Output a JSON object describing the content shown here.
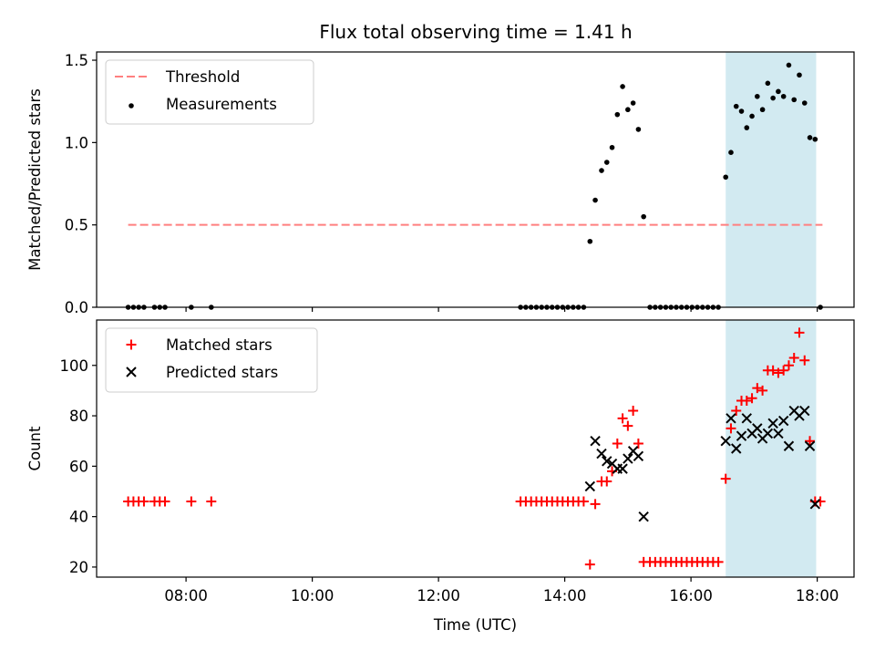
{
  "chart_data": [
    {
      "type": "scatter",
      "title": "Flux total observing time = 1.41 h",
      "xlabel": "",
      "ylabel": "Matched/Predicted stars",
      "xlim": [
        "06:35",
        "18:35"
      ],
      "ylim": [
        0,
        1.55
      ],
      "x_ticks": [
        "08:00",
        "10:00",
        "12:00",
        "14:00",
        "16:00",
        "18:00"
      ],
      "x_tick_labels_visible": false,
      "y_ticks": [
        0.0,
        0.5,
        1.0,
        1.5
      ],
      "y_tick_labels": [
        "0.0",
        "0.5",
        "1.0",
        "1.5"
      ],
      "grid": false,
      "legend_position": "upper-left",
      "shaded_span": {
        "x_start": "16:33",
        "x_end": "17:59",
        "color": "#add8e6"
      },
      "threshold": {
        "name": "Threshold",
        "value": 0.5,
        "x_start": "07:05",
        "x_end": "18:05",
        "color": "#ff7f7f",
        "style": "dashed"
      },
      "series": [
        {
          "name": "Measurements",
          "color": "#000000",
          "marker": "dot",
          "points": [
            [
              "07:05",
              0.0
            ],
            [
              "07:10",
              0.0
            ],
            [
              "07:15",
              0.0
            ],
            [
              "07:20",
              0.0
            ],
            [
              "07:30",
              0.0
            ],
            [
              "07:35",
              0.0
            ],
            [
              "07:40",
              0.0
            ],
            [
              "08:05",
              0.0
            ],
            [
              "08:24",
              0.0
            ],
            [
              "13:18",
              0.0
            ],
            [
              "13:23",
              0.0
            ],
            [
              "13:28",
              0.0
            ],
            [
              "13:33",
              0.0
            ],
            [
              "13:38",
              0.0
            ],
            [
              "13:43",
              0.0
            ],
            [
              "13:48",
              0.0
            ],
            [
              "13:53",
              0.0
            ],
            [
              "13:58",
              0.0
            ],
            [
              "14:03",
              0.0
            ],
            [
              "14:08",
              0.0
            ],
            [
              "14:13",
              0.0
            ],
            [
              "14:18",
              0.0
            ],
            [
              "14:24",
              0.4
            ],
            [
              "14:29",
              0.65
            ],
            [
              "14:35",
              0.83
            ],
            [
              "14:40",
              0.88
            ],
            [
              "14:45",
              0.97
            ],
            [
              "14:50",
              1.17
            ],
            [
              "14:55",
              1.34
            ],
            [
              "15:00",
              1.2
            ],
            [
              "15:05",
              1.24
            ],
            [
              "15:10",
              1.08
            ],
            [
              "15:15",
              0.55
            ],
            [
              "15:21",
              0.0
            ],
            [
              "15:26",
              0.0
            ],
            [
              "15:31",
              0.0
            ],
            [
              "15:36",
              0.0
            ],
            [
              "15:41",
              0.0
            ],
            [
              "15:46",
              0.0
            ],
            [
              "15:51",
              0.0
            ],
            [
              "15:56",
              0.0
            ],
            [
              "16:01",
              0.0
            ],
            [
              "16:06",
              0.0
            ],
            [
              "16:11",
              0.0
            ],
            [
              "16:16",
              0.0
            ],
            [
              "16:21",
              0.0
            ],
            [
              "16:26",
              0.0
            ],
            [
              "16:33",
              0.79
            ],
            [
              "16:38",
              0.94
            ],
            [
              "16:43",
              1.22
            ],
            [
              "16:48",
              1.19
            ],
            [
              "16:53",
              1.09
            ],
            [
              "16:58",
              1.16
            ],
            [
              "17:03",
              1.28
            ],
            [
              "17:08",
              1.2
            ],
            [
              "17:13",
              1.36
            ],
            [
              "17:18",
              1.27
            ],
            [
              "17:23",
              1.31
            ],
            [
              "17:28",
              1.28
            ],
            [
              "17:33",
              1.47
            ],
            [
              "17:38",
              1.26
            ],
            [
              "17:43",
              1.41
            ],
            [
              "17:48",
              1.24
            ],
            [
              "17:53",
              1.03
            ],
            [
              "17:58",
              1.02
            ],
            [
              "18:03",
              0.0
            ]
          ]
        }
      ]
    },
    {
      "type": "scatter",
      "title": "",
      "xlabel": "Time (UTC)",
      "ylabel": "Count",
      "xlim": [
        "06:35",
        "18:35"
      ],
      "ylim": [
        16,
        118
      ],
      "x_ticks": [
        "08:00",
        "10:00",
        "12:00",
        "14:00",
        "16:00",
        "18:00"
      ],
      "x_tick_labels": [
        "08:00",
        "10:00",
        "12:00",
        "14:00",
        "16:00",
        "18:00"
      ],
      "y_ticks": [
        20,
        40,
        60,
        80,
        100
      ],
      "y_tick_labels": [
        "20",
        "40",
        "60",
        "80",
        "100"
      ],
      "grid": false,
      "legend_position": "upper-left",
      "shaded_span": {
        "x_start": "16:33",
        "x_end": "17:59",
        "color": "#add8e6"
      },
      "series": [
        {
          "name": "Matched stars",
          "color": "#ff0000",
          "marker": "plus",
          "points": [
            [
              "07:05",
              46
            ],
            [
              "07:10",
              46
            ],
            [
              "07:15",
              46
            ],
            [
              "07:20",
              46
            ],
            [
              "07:30",
              46
            ],
            [
              "07:35",
              46
            ],
            [
              "07:40",
              46
            ],
            [
              "08:05",
              46
            ],
            [
              "08:24",
              46
            ],
            [
              "13:18",
              46
            ],
            [
              "13:23",
              46
            ],
            [
              "13:28",
              46
            ],
            [
              "13:33",
              46
            ],
            [
              "13:38",
              46
            ],
            [
              "13:43",
              46
            ],
            [
              "13:48",
              46
            ],
            [
              "13:53",
              46
            ],
            [
              "13:58",
              46
            ],
            [
              "14:03",
              46
            ],
            [
              "14:08",
              46
            ],
            [
              "14:13",
              46
            ],
            [
              "14:18",
              46
            ],
            [
              "14:24",
              21
            ],
            [
              "14:29",
              45
            ],
            [
              "14:35",
              54
            ],
            [
              "14:40",
              54
            ],
            [
              "14:45",
              58
            ],
            [
              "14:50",
              69
            ],
            [
              "14:55",
              79
            ],
            [
              "15:00",
              76
            ],
            [
              "15:05",
              82
            ],
            [
              "15:10",
              69
            ],
            [
              "15:15",
              22
            ],
            [
              "15:21",
              22
            ],
            [
              "15:26",
              22
            ],
            [
              "15:31",
              22
            ],
            [
              "15:36",
              22
            ],
            [
              "15:41",
              22
            ],
            [
              "15:46",
              22
            ],
            [
              "15:51",
              22
            ],
            [
              "15:56",
              22
            ],
            [
              "16:01",
              22
            ],
            [
              "16:06",
              22
            ],
            [
              "16:11",
              22
            ],
            [
              "16:16",
              22
            ],
            [
              "16:21",
              22
            ],
            [
              "16:26",
              22
            ],
            [
              "16:33",
              55
            ],
            [
              "16:38",
              75
            ],
            [
              "16:43",
              82
            ],
            [
              "16:48",
              86
            ],
            [
              "16:53",
              86
            ],
            [
              "16:58",
              87
            ],
            [
              "17:03",
              91
            ],
            [
              "17:08",
              90
            ],
            [
              "17:13",
              98
            ],
            [
              "17:18",
              98
            ],
            [
              "17:23",
              97
            ],
            [
              "17:28",
              98
            ],
            [
              "17:33",
              100
            ],
            [
              "17:38",
              103
            ],
            [
              "17:43",
              113
            ],
            [
              "17:48",
              102
            ],
            [
              "17:53",
              70
            ],
            [
              "17:58",
              46
            ],
            [
              "18:03",
              46
            ]
          ]
        },
        {
          "name": "Predicted stars",
          "color": "#000000",
          "marker": "x",
          "points": [
            [
              "14:24",
              52
            ],
            [
              "14:29",
              70
            ],
            [
              "14:35",
              65
            ],
            [
              "14:40",
              62
            ],
            [
              "14:45",
              61
            ],
            [
              "14:50",
              59
            ],
            [
              "14:55",
              59
            ],
            [
              "15:00",
              63
            ],
            [
              "15:05",
              66
            ],
            [
              "15:10",
              64
            ],
            [
              "15:15",
              40
            ],
            [
              "16:33",
              70
            ],
            [
              "16:38",
              79
            ],
            [
              "16:43",
              67
            ],
            [
              "16:48",
              72
            ],
            [
              "16:53",
              79
            ],
            [
              "16:58",
              73
            ],
            [
              "17:03",
              75
            ],
            [
              "17:08",
              71
            ],
            [
              "17:13",
              73
            ],
            [
              "17:18",
              77
            ],
            [
              "17:23",
              73
            ],
            [
              "17:28",
              78
            ],
            [
              "17:33",
              68
            ],
            [
              "17:38",
              82
            ],
            [
              "17:43",
              80
            ],
            [
              "17:48",
              82
            ],
            [
              "17:53",
              68
            ],
            [
              "17:58",
              45
            ]
          ]
        }
      ]
    }
  ]
}
